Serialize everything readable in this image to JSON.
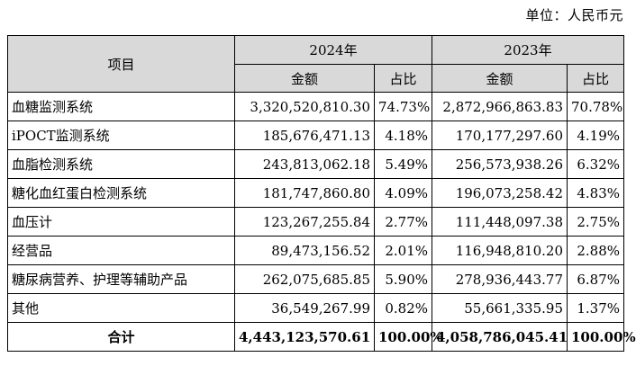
{
  "unit_label": "单位：人民币元",
  "table": {
    "item_header": "项目",
    "year_2024": "2024年",
    "year_2023": "2023年",
    "amount_header": "金额",
    "share_header": "占比",
    "rows": [
      {
        "name": "血糖监测系统",
        "amount_2024": "3,320,520,810.30",
        "share_2024": "74.73%",
        "amount_2023": "2,872,966,863.83",
        "share_2023": "70.78%"
      },
      {
        "name": "iPOCT监测系统",
        "amount_2024": "185,676,471.13",
        "share_2024": "4.18%",
        "amount_2023": "170,177,297.60",
        "share_2023": "4.19%"
      },
      {
        "name": "血脂检测系统",
        "amount_2024": "243,813,062.18",
        "share_2024": "5.49%",
        "amount_2023": "256,573,938.26",
        "share_2023": "6.32%"
      },
      {
        "name": "糖化血红蛋白检测系统",
        "amount_2024": "181,747,860.80",
        "share_2024": "4.09%",
        "amount_2023": "196,073,258.42",
        "share_2023": "4.83%"
      },
      {
        "name": "血压计",
        "amount_2024": "123,267,255.84",
        "share_2024": "2.77%",
        "amount_2023": "111,448,097.38",
        "share_2023": "2.75%"
      },
      {
        "name": "经营品",
        "amount_2024": "89,473,156.52",
        "share_2024": "2.01%",
        "amount_2023": "116,948,810.20",
        "share_2023": "2.88%"
      },
      {
        "name": "糖尿病营养、护理等辅助产品",
        "amount_2024": "262,075,685.85",
        "share_2024": "5.90%",
        "amount_2023": "278,936,443.77",
        "share_2023": "6.87%"
      },
      {
        "name": "其他",
        "amount_2024": "36,549,267.99",
        "share_2024": "0.82%",
        "amount_2023": "55,661,335.95",
        "share_2023": "1.37%"
      }
    ],
    "total": {
      "name": "合计",
      "amount_2024": "4,443,123,570.61",
      "share_2024": "100.00%",
      "amount_2023": "4,058,786,045.41",
      "share_2023": "100.00%"
    }
  }
}
